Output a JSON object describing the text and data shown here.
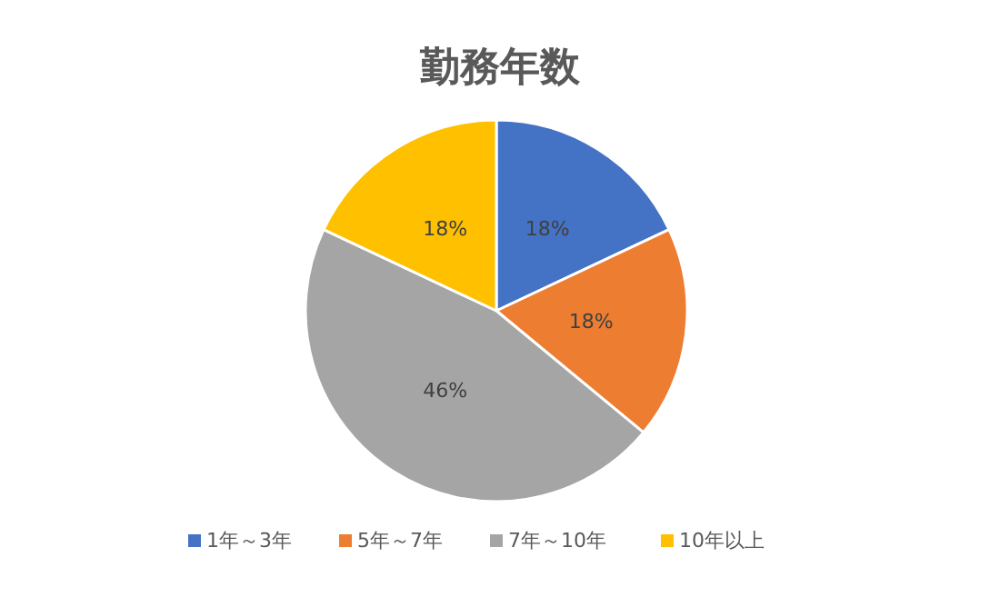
{
  "chart_data": {
    "type": "pie",
    "title": "勤務年数",
    "categories": [
      "1年～3年",
      "5年～7年",
      "7年～10年",
      "10年以上"
    ],
    "values": [
      18,
      18,
      46,
      18
    ],
    "colors": [
      "#4472c4",
      "#ed7d31",
      "#a5a5a5",
      "#ffc000"
    ],
    "value_labels": [
      "18%",
      "18%",
      "46%",
      "18%"
    ],
    "legend": "bottom"
  }
}
